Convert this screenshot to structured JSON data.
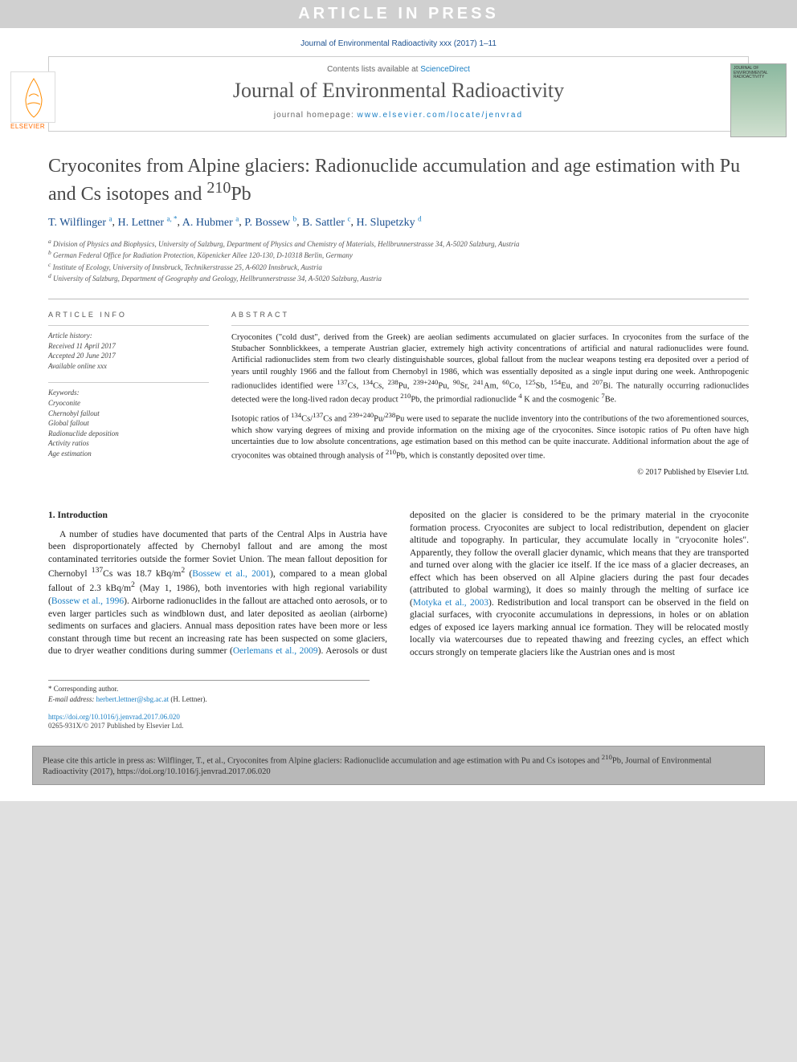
{
  "banner": "ARTICLE IN PRESS",
  "citation_top": "Journal of Environmental Radioactivity xxx (2017) 1–11",
  "header": {
    "contents_label": "Contents lists available at ",
    "sciencedirect": "ScienceDirect",
    "journal": "Journal of Environmental Radioactivity",
    "homepage_label": "journal homepage: ",
    "homepage_url": "www.elsevier.com/locate/jenvrad",
    "publisher": "ELSEVIER",
    "cover_text": "JOURNAL OF ENVIRONMENTAL RADIOACTIVITY"
  },
  "article": {
    "title_html": "Cryoconites from Alpine glaciers: Radionuclide accumulation and age estimation with Pu and Cs isotopes and <sup>210</sup>Pb",
    "authors": [
      {
        "name": "T. Wilflinger",
        "aff": "a"
      },
      {
        "name": "H. Lettner",
        "aff": "a, *"
      },
      {
        "name": "A. Hubmer",
        "aff": "a"
      },
      {
        "name": "P. Bossew",
        "aff": "b"
      },
      {
        "name": "B. Sattler",
        "aff": "c"
      },
      {
        "name": "H. Slupetzky",
        "aff": "d"
      }
    ],
    "affiliations": [
      {
        "key": "a",
        "text": "Division of Physics and Biophysics, University of Salzburg, Department of Physics and Chemistry of Materials, Hellbrunnerstrasse 34, A-5020 Salzburg, Austria"
      },
      {
        "key": "b",
        "text": "German Federal Office for Radiation Protection, Köpenicker Allee 120-130, D-10318 Berlin, Germany"
      },
      {
        "key": "c",
        "text": "Institute of Ecology, University of Innsbruck, Technikerstrasse 25, A-6020 Innsbruck, Austria"
      },
      {
        "key": "d",
        "text": "University of Salzburg, Department of Geography and Geology, Hellbrunnerstrasse 34, A-5020 Salzburg, Austria"
      }
    ]
  },
  "info": {
    "section_label": "ARTICLE INFO",
    "history_heading": "Article history:",
    "history": [
      "Received 11 April 2017",
      "Accepted 20 June 2017",
      "Available online xxx"
    ],
    "keywords_heading": "Keywords:",
    "keywords": [
      "Cryoconite",
      "Chernobyl fallout",
      "Global fallout",
      "Radionuclide deposition",
      "Activity ratios",
      "Age estimation"
    ]
  },
  "abstract": {
    "section_label": "ABSTRACT",
    "p1_html": "Cryoconites (\"cold dust\", derived from the Greek) are aeolian sediments accumulated on glacier surfaces. In cryoconites from the surface of the Stubacher Sonnblickkees, a temperate Austrian glacier, extremely high activity concentrations of artificial and natural radionuclides were found. Artificial radionuclides stem from two clearly distinguishable sources, global fallout from the nuclear weapons testing era deposited over a period of years until roughly 1966 and the fallout from Chernobyl in 1986, which was essentially deposited as a single input during one week. Anthropogenic radionuclides identified were <sup>137</sup>Cs, <sup>134</sup>Cs, <sup>238</sup>Pu, <sup>239+240</sup>Pu, <sup>90</sup>Sr, <sup>241</sup>Am, <sup>60</sup>Co, <sup>125</sup>Sb, <sup>154</sup>Eu, and <sup>207</sup>Bi. The naturally occurring radionuclides detected were the long-lived radon decay product <sup>210</sup>Pb, the primordial radionuclide <sup>4</sup> K and the cosmogenic <sup>7</sup>Be.",
    "p2_html": "Isotopic ratios of <sup>134</sup>Cs/<sup>137</sup>Cs and <sup>239+240</sup>Pu/<sup>238</sup>Pu were used to separate the nuclide inventory into the contributions of the two aforementioned sources, which show varying degrees of mixing and provide information on the mixing age of the cryoconites. Since isotopic ratios of Pu often have high uncertainties due to low absolute concentrations, age estimation based on this method can be quite inaccurate. Additional information about the age of cryoconites was obtained through analysis of <sup>210</sup>Pb, which is constantly deposited over time.",
    "copyright": "© 2017 Published by Elsevier Ltd."
  },
  "intro": {
    "heading": "1. Introduction",
    "col1_html": "A number of studies have documented that parts of the Central Alps in Austria have been disproportionately affected by Chernobyl fallout and are among the most contaminated territories outside the former Soviet Union. The mean fallout deposition for Chernobyl <sup>137</sup>Cs was 18.7 kBq/m<sup>2</sup> (<span class=\"ref-link\">Bossew et al., 2001</span>), compared to a mean global fallout of 2.3 kBq/m<sup>2</sup> (May 1, 1986), both inventories with high regional variability (<span class=\"ref-link\">Bossew et al., 1996</span>). Airborne radionuclides in the fallout are attached onto aerosols, or to even larger particles such as windblown dust, and later deposited as aeolian (airborne) sediments on surfaces and glaciers. Annual mass deposition rates have been more or less constant through time but ",
    "col2_html": "recent an increasing rate has been suspected on some glaciers, due to dryer weather conditions during summer (<span class=\"ref-link\">Oerlemans et al., 2009</span>). Aerosols or dust deposited on the glacier is considered to be the primary material in the cryoconite formation process. Cryoconites are subject to local redistribution, dependent on glacier altitude and topography. In particular, they accumulate locally in \"cryoconite holes\". Apparently, they follow the overall glacier dynamic, which means that they are transported and turned over along with the glacier ice itself. If the ice mass of a glacier decreases, an effect which has been observed on all Alpine glaciers during the past four decades (attributed to global warming), it does so mainly through the melting of surface ice (<span class=\"ref-link\">Motyka et al., 2003</span>). Redistribution and local transport can be observed in the field on glacial surfaces, with cryoconite accumulations in depressions, in holes or on ablation edges of exposed ice layers marking annual ice formation. They will be relocated mostly locally via watercourses due to repeated thawing and freezing cycles, an effect which occurs strongly on temperate glaciers like the Austrian ones and is most"
  },
  "corresponding": {
    "label": "* Corresponding author.",
    "email_label": "E-mail address: ",
    "email": "herbert.lettner@sbg.ac.at",
    "name": "(H. Lettner)."
  },
  "doi": {
    "url": "https://doi.org/10.1016/j.jenvrad.2017.06.020",
    "issn_copy": "0265-931X/© 2017 Published by Elsevier Ltd."
  },
  "cite_box_html": "Please cite this article in press as: Wilflinger, T., et al., Cryoconites from Alpine glaciers: Radionuclide accumulation and age estimation with Pu and Cs isotopes and <sup>210</sup>Pb, Journal of Environmental Radioactivity (2017), https://doi.org/10.1016/j.jenvrad.2017.06.020",
  "colors": {
    "banner_bg": "#d0d0d0",
    "link_blue": "#1a7fc4",
    "dark_blue": "#1a4f8f",
    "orange": "#ff6b00",
    "text": "#222222",
    "border": "#cccccc"
  }
}
